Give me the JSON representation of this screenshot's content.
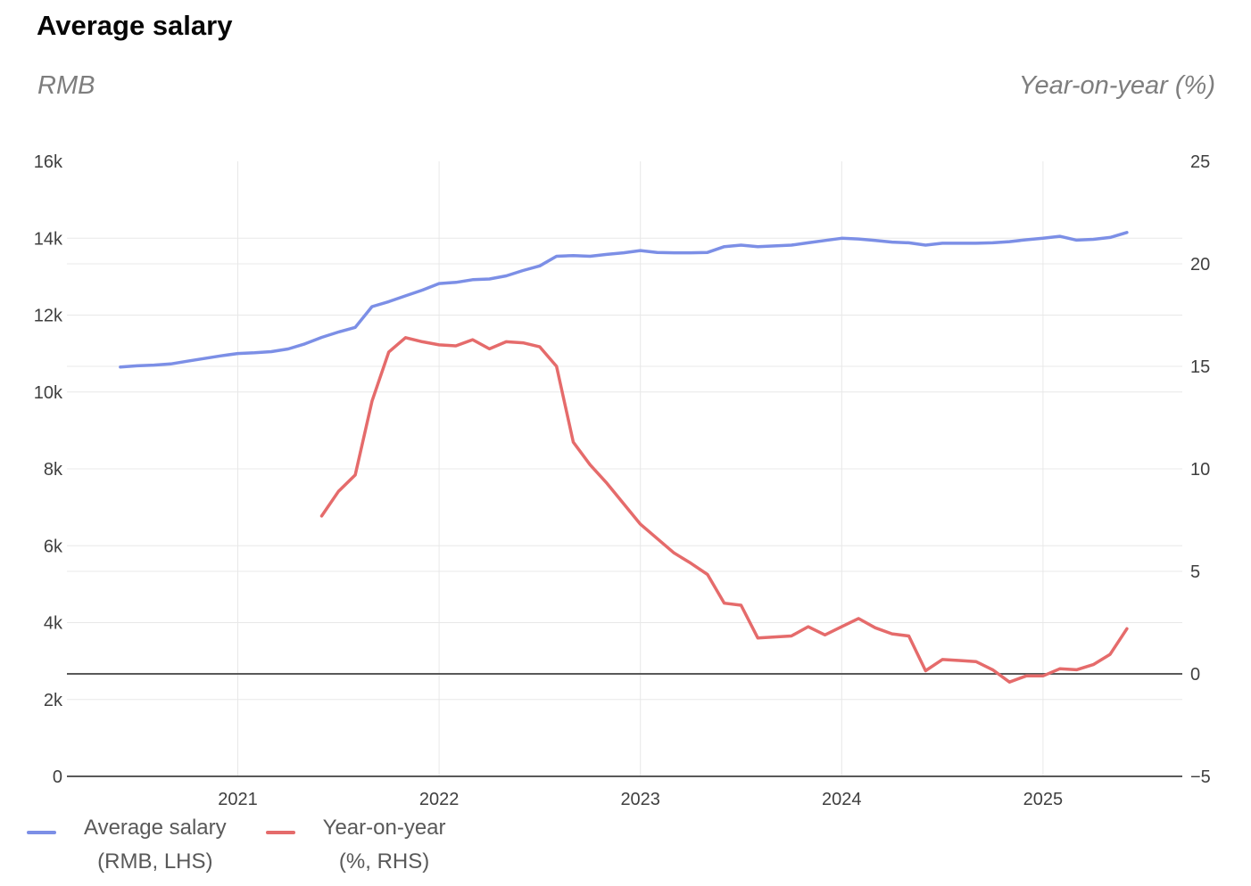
{
  "title": "Average salary",
  "left_axis": {
    "label": "RMB",
    "ticks": [
      {
        "value": 0,
        "label": "0"
      },
      {
        "value": 2000,
        "label": "2k"
      },
      {
        "value": 4000,
        "label": "4k"
      },
      {
        "value": 6000,
        "label": "6k"
      },
      {
        "value": 8000,
        "label": "8k"
      },
      {
        "value": 10000,
        "label": "10k"
      },
      {
        "value": 12000,
        "label": "12k"
      },
      {
        "value": 14000,
        "label": "14k"
      },
      {
        "value": 16000,
        "label": "16k"
      }
    ]
  },
  "right_axis": {
    "label": "Year-on-year (%)",
    "ticks": [
      {
        "value": -5,
        "label": "−5"
      },
      {
        "value": 0,
        "label": "0"
      },
      {
        "value": 5,
        "label": "5"
      },
      {
        "value": 10,
        "label": "10"
      },
      {
        "value": 15,
        "label": "15"
      },
      {
        "value": 20,
        "label": "20"
      },
      {
        "value": 25,
        "label": "25"
      }
    ],
    "zero_line_value": 0
  },
  "x_axis": {
    "year_labels": [
      "2021",
      "2022",
      "2023",
      "2024",
      "2025"
    ]
  },
  "legend": {
    "items": [
      {
        "line1": "Average salary",
        "line2": "(RMB, LHS)",
        "color": "#7c8fe6"
      },
      {
        "line1": "Year-on-year",
        "line2": "(%, RHS)",
        "color": "#e56b6b"
      }
    ]
  },
  "colors": {
    "salary_line": "#7c8fe6",
    "yoy_line": "#e56b6b",
    "grid_light": "#e8e8e8",
    "axis_dark": "#595959",
    "tick_text": "#3f3f3f",
    "subtitle_text": "#7e7e7e",
    "legend_text": "#595959"
  },
  "chart_data": {
    "type": "line",
    "title": "Average salary",
    "x_ticks": [
      "2021",
      "2022",
      "2023",
      "2024",
      "2025"
    ],
    "left_ylim": [
      0,
      16000
    ],
    "right_ylim": [
      -5,
      25
    ],
    "grid": true,
    "legend_position": "bottom-left",
    "frequency": "monthly",
    "series": [
      {
        "name": "Average salary (RMB, LHS)",
        "axis": "left",
        "unit": "RMB",
        "color": "#7c8fe6",
        "start_month": "2020-06",
        "end_month": "2025-06",
        "values": [
          10650,
          10680,
          10700,
          10730,
          10800,
          10870,
          10940,
          11000,
          11020,
          11050,
          11120,
          11250,
          11420,
          11560,
          11680,
          12220,
          12350,
          12500,
          12650,
          12820,
          12850,
          12920,
          12940,
          13020,
          13160,
          13280,
          13530,
          13550,
          13530,
          13580,
          13620,
          13680,
          13630,
          13620,
          13620,
          13630,
          13780,
          13820,
          13780,
          13800,
          13820,
          13880,
          13940,
          14000,
          13980,
          13940,
          13900,
          13880,
          13820,
          13870,
          13870,
          13870,
          13880,
          13910,
          13960,
          14000,
          14050,
          13950,
          13970,
          14020,
          14150
        ]
      },
      {
        "name": "Year-on-year (%, RHS)",
        "axis": "right",
        "unit": "%",
        "color": "#e56b6b",
        "start_month": "2021-06",
        "end_month": "2025-06",
        "values": [
          7.7,
          8.9,
          9.7,
          13.3,
          15.7,
          16.4,
          16.2,
          16.05,
          16.0,
          16.3,
          15.85,
          16.2,
          16.15,
          15.95,
          15.0,
          11.3,
          10.2,
          9.3,
          8.3,
          7.3,
          6.6,
          5.9,
          5.4,
          4.85,
          3.45,
          3.35,
          1.75,
          1.8,
          1.85,
          2.3,
          1.9,
          2.3,
          2.7,
          2.25,
          1.95,
          1.85,
          0.15,
          0.7,
          0.65,
          0.6,
          0.2,
          -0.4,
          -0.1,
          -0.1,
          0.25,
          0.2,
          0.45,
          0.95,
          2.2
        ]
      }
    ]
  }
}
